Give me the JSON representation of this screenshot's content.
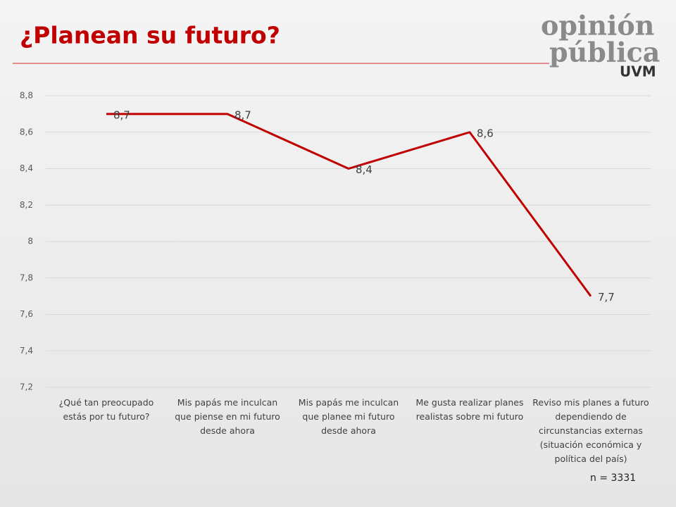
{
  "chart_data": {
    "type": "line",
    "title": "¿Planean su futuro?",
    "categories": [
      "¿Qué tan preocupado estás por tu futuro?",
      "Mis papás me inculcan que piense en mi futuro desde ahora",
      "Mis papás me inculcan que planee mi futuro desde ahora",
      "Me gusta realizar planes realistas sobre mi futuro",
      "Reviso mis planes a futuro dependiendo de circunstancias externas (situación económica y política del país)"
    ],
    "values": [
      8.7,
      8.7,
      8.4,
      8.6,
      7.7
    ],
    "value_labels": [
      "8,7",
      "8,7",
      "8,4",
      "8,6",
      "7,7"
    ],
    "color": "#c00000",
    "ylim": [
      7.2,
      8.8
    ],
    "yticks": [
      {
        "value": 7.2,
        "label": "7,2"
      },
      {
        "value": 7.4,
        "label": "7,4"
      },
      {
        "value": 7.6,
        "label": "7,6"
      },
      {
        "value": 7.8,
        "label": "7,8"
      },
      8,
      {
        "value": 8.2,
        "label": "8,2"
      },
      {
        "value": 8.4,
        "label": "8,4"
      },
      {
        "value": 8.6,
        "label": "8,6"
      },
      {
        "value": 8.8,
        "label": "8,8"
      }
    ],
    "grid": true,
    "note": "n = 3331"
  },
  "logo": {
    "line1": "opinión",
    "line2": "pública",
    "line3": "UVM"
  }
}
